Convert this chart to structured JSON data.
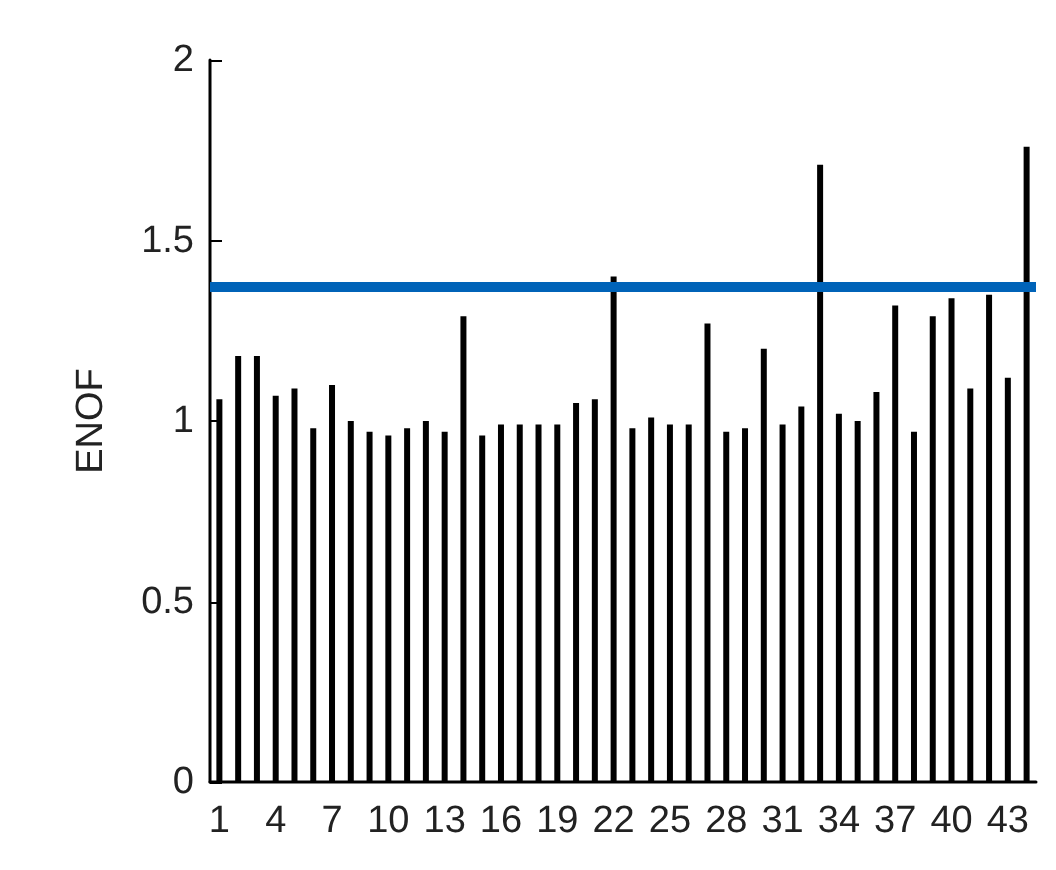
{
  "chart_data": {
    "type": "bar",
    "ylabel": "ENOF",
    "categories": [
      "1",
      null,
      null,
      "4",
      null,
      null,
      "7",
      null,
      null,
      "10",
      null,
      null,
      "13",
      null,
      null,
      "16",
      null,
      null,
      "19",
      null,
      null,
      "22",
      null,
      null,
      "25",
      null,
      null,
      "28",
      null,
      null,
      "31",
      null,
      null,
      "34",
      null,
      null,
      "37",
      null,
      null,
      "40",
      null,
      null,
      "43",
      null
    ],
    "values": [
      1.06,
      1.18,
      1.18,
      1.07,
      1.09,
      0.98,
      1.1,
      1.0,
      0.97,
      0.96,
      0.98,
      1.0,
      0.97,
      1.29,
      0.96,
      0.99,
      0.99,
      0.99,
      0.99,
      1.05,
      1.06,
      1.4,
      0.98,
      1.01,
      0.99,
      0.99,
      1.27,
      0.97,
      0.98,
      1.2,
      0.99,
      1.04,
      1.71,
      1.02,
      1.0,
      1.08,
      1.32,
      0.97,
      1.29,
      1.34,
      1.09,
      1.35,
      1.12,
      1.76
    ],
    "color": "#000000",
    "ylim": [
      0,
      2
    ],
    "yticks": [
      0,
      0.5,
      1,
      1.5,
      2
    ],
    "grid": false,
    "ref_lines": [
      {
        "axis": "y",
        "value": 1.37,
        "color": "#0063b8"
      }
    ]
  }
}
